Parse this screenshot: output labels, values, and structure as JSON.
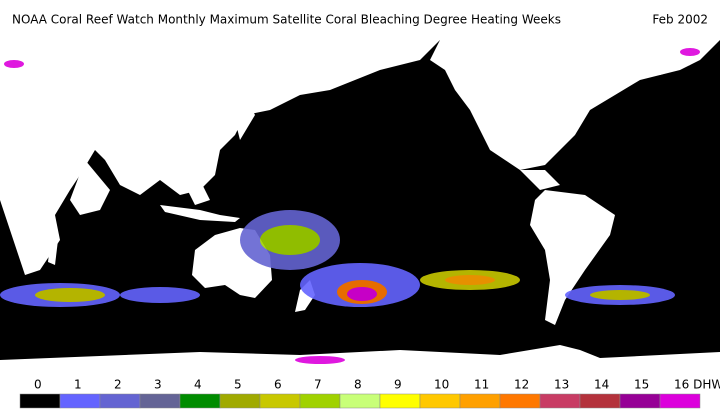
{
  "header": {
    "title": "NOAA Coral Reef Watch Monthly Maximum Satellite Coral Bleaching Degree Heating Weeks",
    "date": "Feb 2002"
  },
  "legend": {
    "items": [
      {
        "label": "0",
        "color": "#000000"
      },
      {
        "label": "1",
        "color": "#6464ff"
      },
      {
        "label": "2",
        "color": "#6464d2"
      },
      {
        "label": "3",
        "color": "#646496"
      },
      {
        "label": "4",
        "color": "#008c00"
      },
      {
        "label": "5",
        "color": "#a0aa00"
      },
      {
        "label": "6",
        "color": "#c8c800"
      },
      {
        "label": "7",
        "color": "#a0d200"
      },
      {
        "label": "8",
        "color": "#c8ff78"
      },
      {
        "label": "9",
        "color": "#ffff00"
      },
      {
        "label": "10",
        "color": "#ffc800"
      },
      {
        "label": "11",
        "color": "#ffa000"
      },
      {
        "label": "12",
        "color": "#ff7800"
      },
      {
        "label": "13",
        "color": "#c83c64"
      },
      {
        "label": "14",
        "color": "#b4323c"
      },
      {
        "label": "15",
        "color": "#960096"
      },
      {
        "label": "16 DHW",
        "color": "#dc00dc"
      }
    ]
  }
}
